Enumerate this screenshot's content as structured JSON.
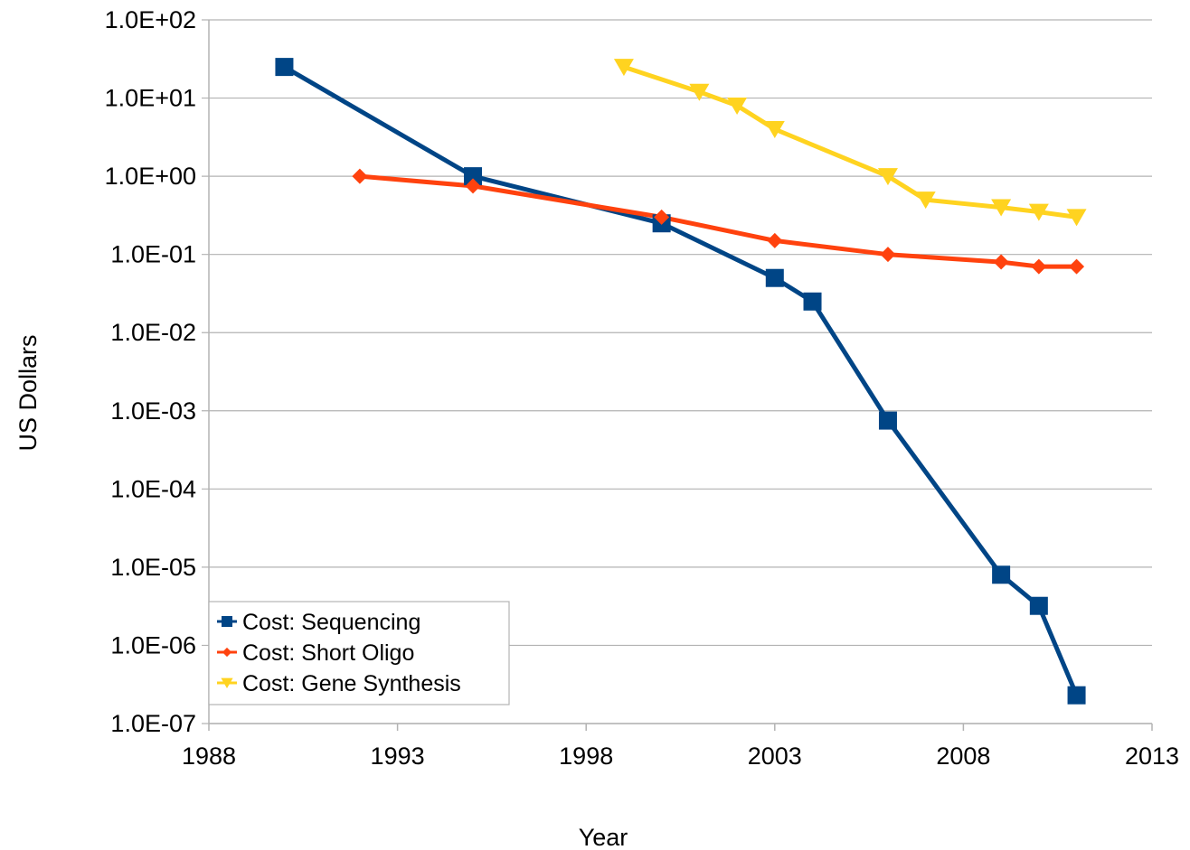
{
  "chart_data": {
    "type": "line",
    "title": "",
    "xlabel": "Year",
    "ylabel": "US Dollars",
    "y_scale": "log",
    "xlim": [
      1988,
      2013
    ],
    "ylim": [
      1e-07,
      100
    ],
    "x_ticks": [
      "1988",
      "1993",
      "1998",
      "2003",
      "2008",
      "2013"
    ],
    "y_ticks": [
      "1.0E+02",
      "1.0E+01",
      "1.0E+00",
      "1.0E-01",
      "1.0E-02",
      "1.0E-03",
      "1.0E-04",
      "1.0E-05",
      "1.0E-06",
      "1.0E-07"
    ],
    "grid": "horizontal",
    "legend_position": "bottom-left",
    "series": [
      {
        "name": "Cost: Sequencing",
        "color": "#004586",
        "marker": "square",
        "x": [
          1990,
          1995,
          2000,
          2003,
          2004,
          2006,
          2009,
          2010,
          2011
        ],
        "y": [
          25,
          1,
          0.25,
          0.05,
          0.025,
          0.00075,
          8e-06,
          3.2e-06,
          2.3e-07
        ]
      },
      {
        "name": "Cost: Short Oligo",
        "color": "#ff420e",
        "marker": "diamond",
        "x": [
          1992,
          1995,
          2000,
          2003,
          2006,
          2009,
          2010,
          2011
        ],
        "y": [
          1,
          0.75,
          0.3,
          0.15,
          0.1,
          0.08,
          0.07,
          0.07
        ]
      },
      {
        "name": "Cost: Gene Synthesis",
        "color": "#ffd320",
        "marker": "triangle-down",
        "x": [
          1999,
          2001,
          2002,
          2003,
          2006,
          2007,
          2009,
          2010,
          2011
        ],
        "y": [
          25,
          12,
          8,
          4,
          1,
          0.5,
          0.4,
          0.35,
          0.3
        ]
      }
    ]
  }
}
